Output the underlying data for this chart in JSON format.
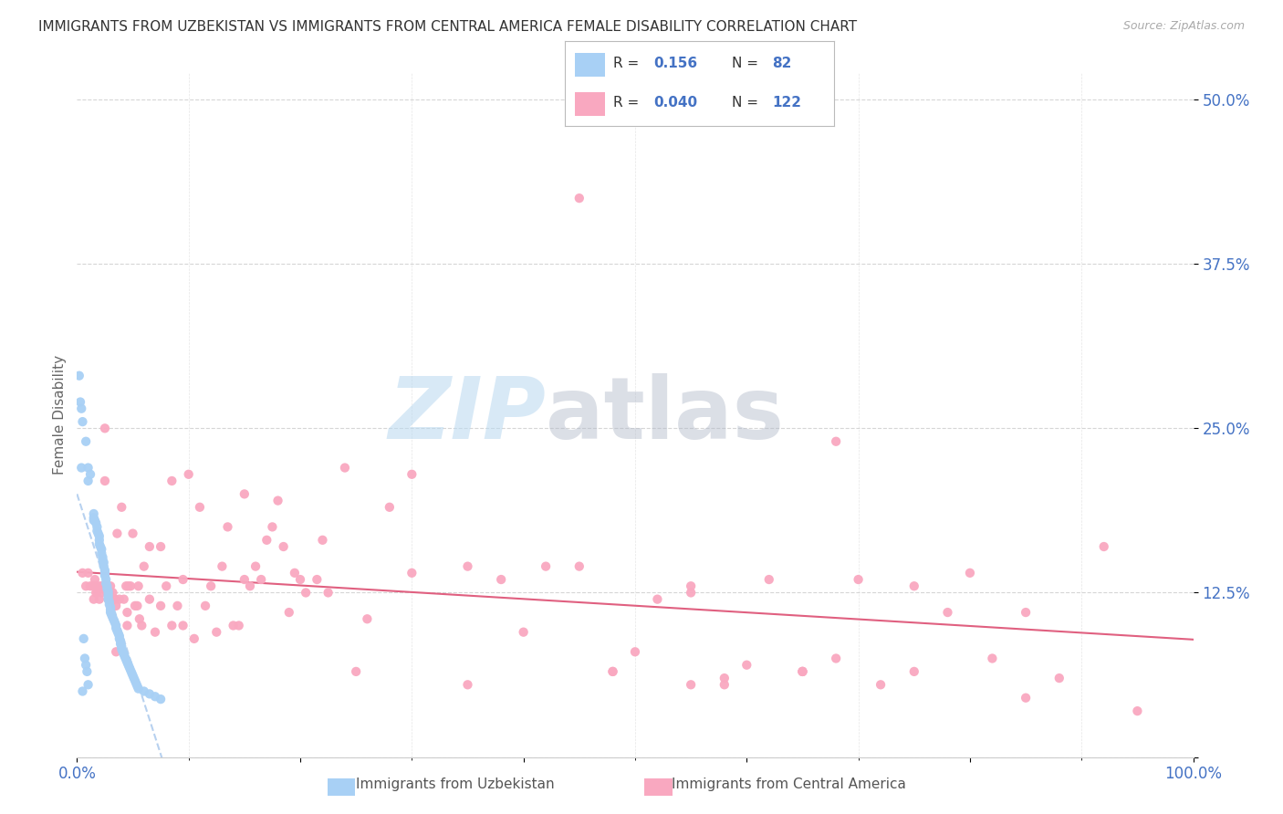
{
  "title": "IMMIGRANTS FROM UZBEKISTAN VS IMMIGRANTS FROM CENTRAL AMERICA FEMALE DISABILITY CORRELATION CHART",
  "source": "Source: ZipAtlas.com",
  "ylabel": "Female Disability",
  "xlim": [
    0.0,
    1.0
  ],
  "ylim": [
    0.0,
    0.52
  ],
  "color_uzbekistan": "#a8d0f5",
  "color_central_america": "#f9a8c0",
  "trendline_uzbekistan_color": "#b0ccee",
  "trendline_central_america_color": "#e06080",
  "background_color": "#ffffff",
  "grid_color": "#cccccc",
  "uzbekistan_x": [
    0.002,
    0.003,
    0.004,
    0.004,
    0.005,
    0.005,
    0.006,
    0.007,
    0.008,
    0.008,
    0.009,
    0.01,
    0.01,
    0.01,
    0.012,
    0.015,
    0.015,
    0.015,
    0.016,
    0.017,
    0.018,
    0.018,
    0.019,
    0.02,
    0.02,
    0.02,
    0.021,
    0.022,
    0.022,
    0.023,
    0.023,
    0.024,
    0.024,
    0.025,
    0.025,
    0.025,
    0.026,
    0.026,
    0.027,
    0.027,
    0.028,
    0.028,
    0.028,
    0.028,
    0.029,
    0.029,
    0.03,
    0.03,
    0.03,
    0.031,
    0.032,
    0.033,
    0.034,
    0.035,
    0.035,
    0.036,
    0.037,
    0.038,
    0.038,
    0.039,
    0.039,
    0.04,
    0.04,
    0.041,
    0.042,
    0.043,
    0.044,
    0.045,
    0.046,
    0.047,
    0.048,
    0.049,
    0.05,
    0.051,
    0.052,
    0.053,
    0.054,
    0.055,
    0.06,
    0.065,
    0.07,
    0.075
  ],
  "uzbekistan_y": [
    0.29,
    0.27,
    0.265,
    0.22,
    0.255,
    0.05,
    0.09,
    0.075,
    0.24,
    0.07,
    0.065,
    0.22,
    0.21,
    0.055,
    0.215,
    0.185,
    0.182,
    0.18,
    0.18,
    0.178,
    0.175,
    0.172,
    0.17,
    0.168,
    0.165,
    0.162,
    0.16,
    0.158,
    0.155,
    0.152,
    0.15,
    0.148,
    0.145,
    0.142,
    0.14,
    0.138,
    0.135,
    0.132,
    0.13,
    0.128,
    0.126,
    0.124,
    0.122,
    0.12,
    0.118,
    0.116,
    0.114,
    0.112,
    0.11,
    0.108,
    0.106,
    0.104,
    0.102,
    0.1,
    0.098,
    0.096,
    0.094,
    0.092,
    0.09,
    0.088,
    0.086,
    0.084,
    0.082,
    0.08,
    0.078,
    0.076,
    0.074,
    0.072,
    0.07,
    0.068,
    0.066,
    0.064,
    0.062,
    0.06,
    0.058,
    0.056,
    0.054,
    0.052,
    0.05,
    0.048,
    0.046,
    0.044
  ],
  "central_america_x": [
    0.005,
    0.008,
    0.01,
    0.012,
    0.015,
    0.015,
    0.016,
    0.017,
    0.018,
    0.018,
    0.02,
    0.021,
    0.022,
    0.023,
    0.024,
    0.025,
    0.026,
    0.027,
    0.028,
    0.029,
    0.03,
    0.03,
    0.032,
    0.034,
    0.035,
    0.036,
    0.038,
    0.04,
    0.042,
    0.044,
    0.045,
    0.046,
    0.048,
    0.05,
    0.052,
    0.054,
    0.056,
    0.058,
    0.06,
    0.065,
    0.07,
    0.075,
    0.08,
    0.085,
    0.09,
    0.095,
    0.1,
    0.11,
    0.12,
    0.13,
    0.14,
    0.15,
    0.16,
    0.17,
    0.18,
    0.19,
    0.2,
    0.22,
    0.24,
    0.26,
    0.28,
    0.3,
    0.35,
    0.4,
    0.45,
    0.5,
    0.55,
    0.6,
    0.65,
    0.7,
    0.75,
    0.8,
    0.85,
    0.015,
    0.025,
    0.035,
    0.045,
    0.055,
    0.065,
    0.075,
    0.085,
    0.095,
    0.105,
    0.115,
    0.125,
    0.135,
    0.145,
    0.155,
    0.165,
    0.175,
    0.185,
    0.195,
    0.205,
    0.215,
    0.225,
    0.3,
    0.38,
    0.42,
    0.48,
    0.52,
    0.58,
    0.62,
    0.68,
    0.72,
    0.78,
    0.82,
    0.88,
    0.92,
    0.55,
    0.65,
    0.75,
    0.85,
    0.95,
    0.48,
    0.58,
    0.68,
    0.45,
    0.15,
    0.25,
    0.35,
    0.55,
    0.65
  ],
  "central_america_y": [
    0.14,
    0.13,
    0.14,
    0.13,
    0.13,
    0.12,
    0.135,
    0.125,
    0.13,
    0.125,
    0.12,
    0.13,
    0.125,
    0.13,
    0.128,
    0.25,
    0.13,
    0.125,
    0.12,
    0.125,
    0.12,
    0.13,
    0.125,
    0.12,
    0.115,
    0.17,
    0.12,
    0.19,
    0.12,
    0.13,
    0.11,
    0.13,
    0.13,
    0.17,
    0.115,
    0.115,
    0.105,
    0.1,
    0.145,
    0.16,
    0.095,
    0.16,
    0.13,
    0.21,
    0.115,
    0.1,
    0.215,
    0.19,
    0.13,
    0.145,
    0.1,
    0.2,
    0.145,
    0.165,
    0.195,
    0.11,
    0.135,
    0.165,
    0.22,
    0.105,
    0.19,
    0.14,
    0.145,
    0.095,
    0.145,
    0.08,
    0.125,
    0.07,
    0.065,
    0.135,
    0.065,
    0.14,
    0.11,
    0.13,
    0.21,
    0.08,
    0.1,
    0.13,
    0.12,
    0.115,
    0.1,
    0.135,
    0.09,
    0.115,
    0.095,
    0.175,
    0.1,
    0.13,
    0.135,
    0.175,
    0.16,
    0.14,
    0.125,
    0.135,
    0.125,
    0.215,
    0.135,
    0.145,
    0.065,
    0.12,
    0.06,
    0.135,
    0.075,
    0.055,
    0.11,
    0.075,
    0.06,
    0.16,
    0.055,
    0.065,
    0.13,
    0.045,
    0.035,
    0.065,
    0.055,
    0.24,
    0.425,
    0.135,
    0.065,
    0.055,
    0.13,
    0.065
  ]
}
